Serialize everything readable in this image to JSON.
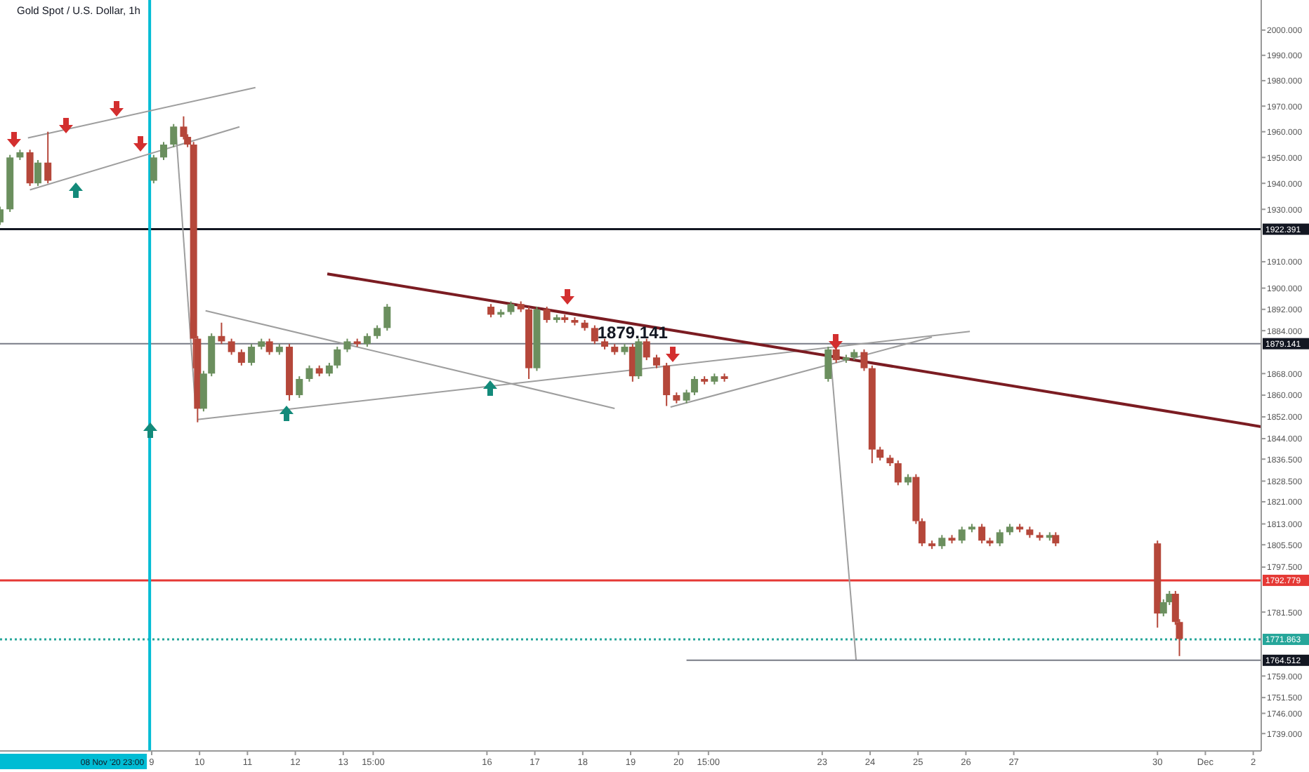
{
  "chart_data": {
    "type": "candlestick",
    "title": "Gold Spot / U.S. Dollar, 1h",
    "log": true,
    "grid": false,
    "xlim": [
      "2020-11-05T20:00",
      "2020-12-02T04:00"
    ],
    "xticks": [
      {
        "value": "2020-11-09",
        "label": "9"
      },
      {
        "value": "2020-11-10",
        "label": "10"
      },
      {
        "value": "2020-11-11",
        "label": "11"
      },
      {
        "value": "2020-11-12",
        "label": "12"
      },
      {
        "value": "2020-11-13",
        "label": "13"
      },
      {
        "value": "2020-11-13T15:00",
        "label": "15:00"
      },
      {
        "value": "2020-11-16",
        "label": "16"
      },
      {
        "value": "2020-11-17",
        "label": "17"
      },
      {
        "value": "2020-11-18",
        "label": "18"
      },
      {
        "value": "2020-11-19",
        "label": "19"
      },
      {
        "value": "2020-11-20",
        "label": "20"
      },
      {
        "value": "2020-11-20T15:00",
        "label": "15:00"
      },
      {
        "value": "2020-11-23",
        "label": "23"
      },
      {
        "value": "2020-11-24",
        "label": "24"
      },
      {
        "value": "2020-11-25",
        "label": "25"
      },
      {
        "value": "2020-11-26",
        "label": "26"
      },
      {
        "value": "2020-11-27",
        "label": "27"
      },
      {
        "value": "2020-11-30",
        "label": "30"
      },
      {
        "value": "2020-12-01",
        "label": "Dec"
      },
      {
        "value": "2020-12-02",
        "label": "2"
      }
    ],
    "ylim": [
      1733,
      2012
    ],
    "yticks": [
      {
        "value": 2000,
        "label": "2000.000"
      },
      {
        "value": 1990,
        "label": "1990.000"
      },
      {
        "value": 1980,
        "label": "1980.000"
      },
      {
        "value": 1970,
        "label": "1970.000"
      },
      {
        "value": 1960,
        "label": "1960.000"
      },
      {
        "value": 1950,
        "label": "1950.000"
      },
      {
        "value": 1940,
        "label": "1940.000"
      },
      {
        "value": 1930,
        "label": "1930.000"
      },
      {
        "value": 1910,
        "label": "1910.000"
      },
      {
        "value": 1900,
        "label": "1900.000"
      },
      {
        "value": 1892,
        "label": "1892.000"
      },
      {
        "value": 1884,
        "label": "1884.000"
      },
      {
        "value": 1868,
        "label": "1868.000"
      },
      {
        "value": 1860,
        "label": "1860.000"
      },
      {
        "value": 1852,
        "label": "1852.000"
      },
      {
        "value": 1844,
        "label": "1844.000"
      },
      {
        "value": 1836.5,
        "label": "1836.500"
      },
      {
        "value": 1828.5,
        "label": "1828.500"
      },
      {
        "value": 1821,
        "label": "1821.000"
      },
      {
        "value": 1813,
        "label": "1813.000"
      },
      {
        "value": 1805.5,
        "label": "1805.500"
      },
      {
        "value": 1797.5,
        "label": "1797.500"
      },
      {
        "value": 1781.5,
        "label": "1781.500"
      },
      {
        "value": 1759,
        "label": "1759.000"
      },
      {
        "value": 1751.5,
        "label": "1751.500"
      },
      {
        "value": 1746,
        "label": "1746.000"
      },
      {
        "value": 1739,
        "label": "1739.000"
      }
    ],
    "x": [
      "2020-11-05T20:00",
      "2020-11-06T01:00",
      "2020-11-06T06:00",
      "2020-11-06T11:00",
      "2020-11-06T15:00",
      "2020-11-06T20:00",
      "2020-11-09T01:00",
      "2020-11-09T06:00",
      "2020-11-09T11:00",
      "2020-11-09T16:00",
      "2020-11-09T18:00",
      "2020-11-09T21:00",
      "2020-11-09T23:00",
      "2020-11-10T02:00",
      "2020-11-10T06:00",
      "2020-11-10T11:00",
      "2020-11-10T16:00",
      "2020-11-10T21:00",
      "2020-11-11T02:00",
      "2020-11-11T07:00",
      "2020-11-11T11:00",
      "2020-11-11T16:00",
      "2020-11-11T21:00",
      "2020-11-12T02:00",
      "2020-11-12T07:00",
      "2020-11-12T12:00",
      "2020-11-12T17:00",
      "2020-11-12T21:00",
      "2020-11-13T02:00",
      "2020-11-13T07:00",
      "2020-11-13T12:00",
      "2020-11-13T17:00",
      "2020-11-13T22:00",
      "2020-11-16T02:00",
      "2020-11-16T07:00",
      "2020-11-16T12:00",
      "2020-11-16T17:00",
      "2020-11-16T21:00",
      "2020-11-17T01:00",
      "2020-11-17T06:00",
      "2020-11-17T11:00",
      "2020-11-17T15:00",
      "2020-11-17T20:00",
      "2020-11-18T01:00",
      "2020-11-18T06:00",
      "2020-11-18T11:00",
      "2020-11-18T16:00",
      "2020-11-18T21:00",
      "2020-11-19T01:00",
      "2020-11-19T04:00",
      "2020-11-19T08:00",
      "2020-11-19T13:00",
      "2020-11-19T18:00",
      "2020-11-19T23:00",
      "2020-11-20T04:00",
      "2020-11-20T08:00",
      "2020-11-20T13:00",
      "2020-11-20T18:00",
      "2020-11-20T23:00",
      "2020-11-23T03:00",
      "2020-11-23T07:00",
      "2020-11-23T12:00",
      "2020-11-23T16:00",
      "2020-11-23T21:00",
      "2020-11-24T01:00",
      "2020-11-24T05:00",
      "2020-11-24T10:00",
      "2020-11-24T14:00",
      "2020-11-24T19:00",
      "2020-11-24T23:00",
      "2020-11-25T02:00",
      "2020-11-25T07:00",
      "2020-11-25T12:00",
      "2020-11-25T17:00",
      "2020-11-25T22:00",
      "2020-11-26T03:00",
      "2020-11-26T08:00",
      "2020-11-26T12:00",
      "2020-11-26T17:00",
      "2020-11-26T22:00",
      "2020-11-27T03:00",
      "2020-11-27T08:00",
      "2020-11-27T13:00",
      "2020-11-27T18:00",
      "2020-11-27T21:00",
      "2020-11-30T00:00",
      "2020-11-30T03:00",
      "2020-11-30T06:00",
      "2020-11-30T09:00",
      "2020-11-30T11:00"
    ],
    "ohlc": [
      [
        1925,
        1931,
        1924,
        1930
      ],
      [
        1930,
        1951,
        1929,
        1950
      ],
      [
        1950,
        1953,
        1949,
        1952
      ],
      [
        1952,
        1953,
        1939,
        1940
      ],
      [
        1940,
        1949,
        1939,
        1948
      ],
      [
        1948,
        1960,
        1940,
        1941
      ],
      [
        1941,
        1951,
        1940,
        1950
      ],
      [
        1950,
        1956,
        1949,
        1955
      ],
      [
        1955,
        1963,
        1954,
        1962
      ],
      [
        1962,
        1966,
        1957,
        1958
      ],
      [
        1958,
        1959,
        1954,
        1955
      ],
      [
        1955,
        1956,
        1870,
        1881
      ],
      [
        1881,
        1882,
        1850,
        1855
      ],
      [
        1855,
        1869,
        1854,
        1868
      ],
      [
        1868,
        1883,
        1867,
        1882
      ],
      [
        1882,
        1887,
        1879,
        1880
      ],
      [
        1880,
        1881,
        1875,
        1876
      ],
      [
        1876,
        1877,
        1871,
        1872
      ],
      [
        1872,
        1879,
        1871,
        1878
      ],
      [
        1878,
        1881,
        1877,
        1880
      ],
      [
        1880,
        1881,
        1875,
        1876
      ],
      [
        1876,
        1879,
        1875,
        1878
      ],
      [
        1878,
        1879,
        1858,
        1860
      ],
      [
        1860,
        1867,
        1859,
        1866
      ],
      [
        1866,
        1871,
        1865,
        1870
      ],
      [
        1870,
        1871,
        1867,
        1868
      ],
      [
        1868,
        1872,
        1867,
        1871
      ],
      [
        1871,
        1878,
        1870,
        1877
      ],
      [
        1877,
        1881,
        1876,
        1880
      ],
      [
        1880,
        1881,
        1878,
        1879
      ],
      [
        1879,
        1883,
        1878,
        1882
      ],
      [
        1882,
        1886,
        1881,
        1885
      ],
      [
        1885,
        1894,
        1884,
        1893
      ],
      [
        1893,
        1894,
        1889,
        1890
      ],
      [
        1890,
        1892,
        1889,
        1891
      ],
      [
        1891,
        1895,
        1890,
        1894
      ],
      [
        1894,
        1895,
        1891,
        1892
      ],
      [
        1892,
        1893,
        1866,
        1870
      ],
      [
        1870,
        1893,
        1869,
        1892
      ],
      [
        1892,
        1893,
        1887,
        1888
      ],
      [
        1888,
        1890,
        1887,
        1889
      ],
      [
        1889,
        1890,
        1887,
        1888
      ],
      [
        1888,
        1889,
        1886,
        1887
      ],
      [
        1887,
        1888,
        1884,
        1885
      ],
      [
        1885,
        1886,
        1879,
        1880
      ],
      [
        1880,
        1881,
        1877,
        1878
      ],
      [
        1878,
        1879,
        1875,
        1876
      ],
      [
        1876,
        1879,
        1875,
        1878
      ],
      [
        1878,
        1879,
        1865,
        1867
      ],
      [
        1867,
        1881,
        1866,
        1880
      ],
      [
        1880,
        1881,
        1873,
        1874
      ],
      [
        1874,
        1875,
        1870,
        1871
      ],
      [
        1871,
        1872,
        1856,
        1860
      ],
      [
        1860,
        1861,
        1857,
        1858
      ],
      [
        1858,
        1862,
        1857,
        1861
      ],
      [
        1861,
        1867,
        1860,
        1866
      ],
      [
        1866,
        1867,
        1864,
        1865
      ],
      [
        1865,
        1868,
        1864,
        1867
      ],
      [
        1867,
        1868,
        1865,
        1866
      ],
      [
        1866,
        1878,
        1865,
        1877
      ],
      [
        1877,
        1878,
        1872,
        1873
      ],
      [
        1873,
        1875,
        1872,
        1874
      ],
      [
        1874,
        1877,
        1873,
        1876
      ],
      [
        1876,
        1877,
        1869,
        1870
      ],
      [
        1870,
        1871,
        1835,
        1840
      ],
      [
        1840,
        1841,
        1836,
        1837
      ],
      [
        1837,
        1838,
        1834,
        1835
      ],
      [
        1835,
        1836,
        1827,
        1828
      ],
      [
        1828,
        1831,
        1827,
        1830
      ],
      [
        1830,
        1831,
        1813,
        1814
      ],
      [
        1814,
        1815,
        1805,
        1806
      ],
      [
        1806,
        1807,
        1804,
        1805
      ],
      [
        1805,
        1809,
        1804,
        1808
      ],
      [
        1808,
        1809,
        1806,
        1807
      ],
      [
        1807,
        1812,
        1806,
        1811
      ],
      [
        1811,
        1813,
        1810,
        1812
      ],
      [
        1812,
        1813,
        1806,
        1807
      ],
      [
        1807,
        1808,
        1805,
        1806
      ],
      [
        1806,
        1811,
        1805,
        1810
      ],
      [
        1810,
        1813,
        1809,
        1812
      ],
      [
        1812,
        1813,
        1810,
        1811
      ],
      [
        1811,
        1812,
        1808,
        1809
      ],
      [
        1809,
        1810,
        1807,
        1808
      ],
      [
        1808,
        1810,
        1807,
        1809
      ],
      [
        1809,
        1810,
        1805,
        1806
      ],
      [
        1806,
        1807,
        1776,
        1781
      ],
      [
        1781,
        1786,
        1780,
        1785
      ],
      [
        1785,
        1789,
        1784,
        1788
      ],
      [
        1788,
        1789,
        1777,
        1778
      ],
      [
        1778,
        1779,
        1766,
        1772
      ]
    ],
    "series": [
      {
        "type": "line",
        "color": "#9e9e9e",
        "x": [
          "2020-11-06T10:00",
          "2020-11-11T04:00"
        ],
        "values": [
          1957.6,
          1977.3
        ]
      },
      {
        "type": "line",
        "color": "#9e9e9e",
        "x": [
          "2020-11-06T11:00",
          "2020-11-10T20:00"
        ],
        "values": [
          1937.5,
          1961.9
        ]
      },
      {
        "type": "line",
        "color": "#9e9e9e",
        "x": [
          "2020-11-09T12:00",
          "2020-11-09T22:00"
        ],
        "values": [
          1962,
          1855
        ]
      },
      {
        "type": "line",
        "color": "#9e9e9e",
        "x": [
          "2020-11-10T03:00",
          "2020-11-18T16:00"
        ],
        "values": [
          1891.5,
          1855.1
        ]
      },
      {
        "type": "line",
        "color": "#9e9e9e",
        "x": [
          "2020-11-09T23:00",
          "2020-11-26T02:00"
        ],
        "values": [
          1851,
          1883.7
        ]
      },
      {
        "type": "line",
        "color": "#9e9e9e",
        "x": [
          "2020-11-19T20:00",
          "2020-11-25T07:00"
        ],
        "values": [
          1855.6,
          1881.6
        ]
      },
      {
        "type": "line",
        "color": "#7b1c22",
        "x": [
          "2020-11-12T16:00",
          "2020-12-02T04:00"
        ],
        "values": [
          1905.4,
          1848.4
        ]
      },
      {
        "type": "line",
        "color": "#9e9e9e",
        "x": [
          "2020-11-23T04:00",
          "2020-11-23T17:00"
        ],
        "values": [
          1875.9,
          1764.5
        ]
      },
      {
        "type": "line",
        "color": "#787b86",
        "x": [
          "2020-11-20T04:00",
          "2020-12-02T04:00"
        ],
        "values": [
          1764.512,
          1764.512
        ],
        "value_labels": [
          null,
          "1764.512"
        ]
      }
    ],
    "ref_lines": [
      {
        "axis": "y",
        "value": 1922.391,
        "label": "1922.391",
        "color": "#131722"
      },
      {
        "axis": "y",
        "value": 1879.141,
        "label": "1879.141",
        "color": "#787b86"
      },
      {
        "axis": "y",
        "value": 1792.779,
        "label": "1792.779",
        "color": "#e53935"
      },
      {
        "axis": "y",
        "value": 1771.863,
        "label": "1771.863",
        "color": "#26a69a",
        "line_style": "dotted"
      },
      {
        "axis": "x",
        "value": "2020-11-08T23:00",
        "label": "08 Nov '20 23:00",
        "color": "#00bcd4"
      }
    ],
    "annotations": [
      {
        "text": "1879.141",
        "x": "2020-11-19T01:00",
        "y": 1879.141
      }
    ]
  }
}
